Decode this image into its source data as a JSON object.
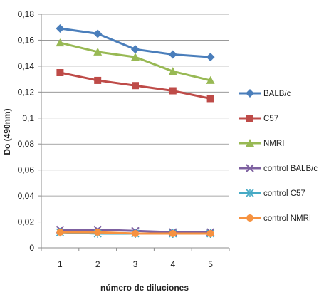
{
  "chart_data": {
    "type": "line",
    "title": "",
    "xlabel": "número de diluciones",
    "ylabel": "Do (490nm)",
    "categories": [
      "1",
      "2",
      "3",
      "4",
      "5"
    ],
    "ylim": [
      0,
      0.18
    ],
    "yticks": [
      0,
      0.02,
      0.04,
      0.06,
      0.08,
      0.1,
      0.12,
      0.14,
      0.16,
      0.18
    ],
    "ytick_labels": [
      "0",
      "0,02",
      "0,04",
      "0,06",
      "0,08",
      "0,1",
      "0,12",
      "0,14",
      "0,16",
      "0,18"
    ],
    "grid": "horizontal",
    "legend_position": "right",
    "series": [
      {
        "name": "BALB/c",
        "color": "#4A7EBB",
        "marker": "diamond",
        "values": [
          0.169,
          0.165,
          0.153,
          0.149,
          0.147
        ]
      },
      {
        "name": "C57",
        "color": "#BE4B48",
        "marker": "square",
        "values": [
          0.135,
          0.129,
          0.125,
          0.121,
          0.115
        ]
      },
      {
        "name": "NMRI",
        "color": "#98B954",
        "marker": "triangle",
        "values": [
          0.158,
          0.151,
          0.147,
          0.136,
          0.129
        ]
      },
      {
        "name": "control BALB/c",
        "color": "#7D60A0",
        "marker": "x",
        "values": [
          0.014,
          0.014,
          0.013,
          0.012,
          0.012
        ]
      },
      {
        "name": "control C57",
        "color": "#46AAC5",
        "marker": "star",
        "values": [
          0.012,
          0.011,
          0.011,
          0.011,
          0.011
        ]
      },
      {
        "name": "control NMRI",
        "color": "#F69240",
        "marker": "circle",
        "values": [
          0.012,
          0.012,
          0.011,
          0.011,
          0.011
        ]
      }
    ]
  }
}
